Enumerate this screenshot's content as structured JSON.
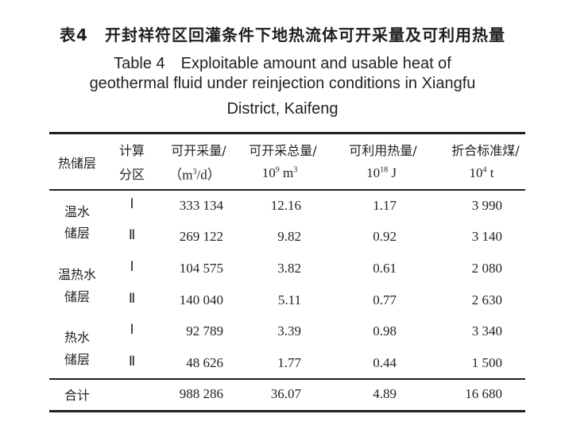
{
  "caption": {
    "cn": "表4　开封祥符区回灌条件下地热流体可开采量及可利用热量",
    "en_lines": [
      "Table 4　Exploitable amount and usable heat of",
      "geothermal fluid under reinjection conditions in Xiangfu",
      "District, Kaifeng"
    ]
  },
  "header": {
    "reservoir": "热储层",
    "zone": [
      "计算",
      "分区"
    ],
    "exploitable": [
      "可开采量/",
      "（m",
      "3",
      "/d）"
    ],
    "total": [
      "可开采总量/",
      "10",
      "9",
      " m",
      "3"
    ],
    "heat": [
      "可利用热量/",
      "10",
      "18",
      " J"
    ],
    "coal": [
      "折合标准煤/",
      "10",
      "4",
      " t"
    ]
  },
  "groups": [
    [
      "温水",
      "储层"
    ],
    [
      "温热水",
      "储层"
    ],
    [
      "热水",
      "储层"
    ]
  ],
  "rows": [
    {
      "zone": "Ⅰ",
      "exploitable": "333 134",
      "total": "12.16",
      "heat": "1.17",
      "coal": "3 990"
    },
    {
      "zone": "Ⅱ",
      "exploitable": "269 122",
      "total": "9.82",
      "heat": "0.92",
      "coal": "3 140"
    },
    {
      "zone": "Ⅰ",
      "exploitable": "104 575",
      "total": "3.82",
      "heat": "0.61",
      "coal": "2 080"
    },
    {
      "zone": "Ⅱ",
      "exploitable": "140 040",
      "total": "5.11",
      "heat": "0.77",
      "coal": "2 630"
    },
    {
      "zone": "Ⅰ",
      "exploitable": "92 789",
      "total": "3.39",
      "heat": "0.98",
      "coal": "3 340"
    },
    {
      "zone": "Ⅱ",
      "exploitable": "48 626",
      "total": "1.77",
      "heat": "0.44",
      "coal": "1 500"
    }
  ],
  "total": {
    "label": "合计",
    "exploitable": "988 286",
    "total": "36.07",
    "heat": "4.89",
    "coal": "16 680"
  }
}
